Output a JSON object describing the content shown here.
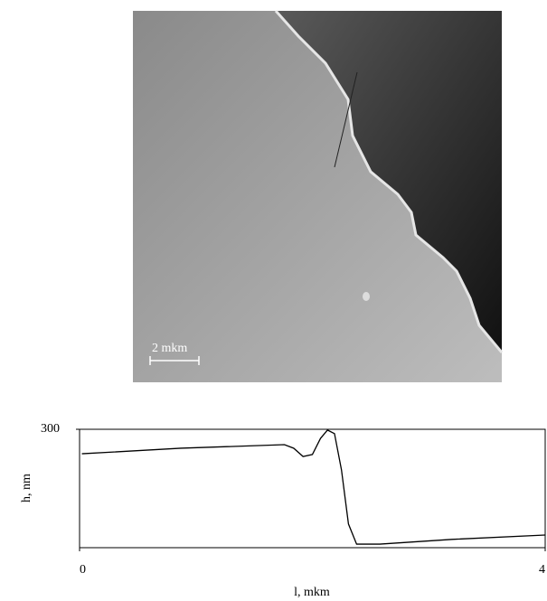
{
  "image": {
    "scale_label": "2 mkm"
  },
  "chart_data": {
    "type": "line",
    "xlabel": "l, mkm",
    "ylabel": "h, nm",
    "x": [
      0.02,
      0.87,
      1.76,
      1.84,
      1.92,
      2.0,
      2.07,
      2.13,
      2.19,
      2.25,
      2.31,
      2.38,
      2.58,
      3.2,
      4.0
    ],
    "series": [
      {
        "color": "#000000",
        "values": [
          238,
          252,
          261,
          252,
          231,
          236,
          277,
          298,
          289,
          197,
          60,
          9,
          9,
          21,
          32
        ]
      }
    ],
    "xlim": [
      0,
      4
    ],
    "ylim": [
      0,
      300
    ],
    "xticks": [
      0,
      4
    ],
    "yticks": [
      300
    ],
    "grid": false
  }
}
